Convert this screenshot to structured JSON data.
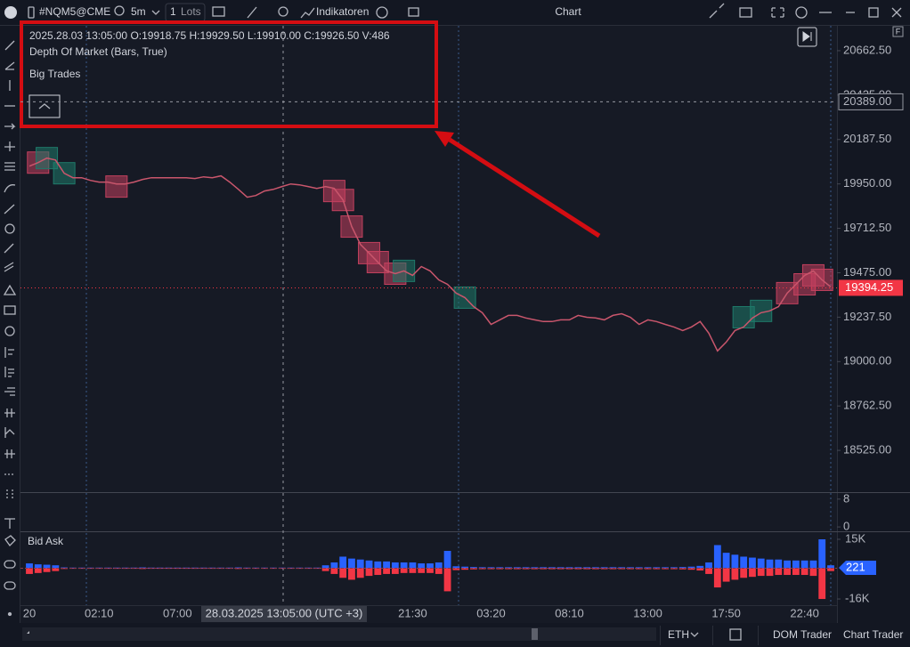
{
  "toolbar": {
    "symbol": "#NQM5@CME",
    "interval": "5m",
    "quantity": "1",
    "quantity_unit": "Lots",
    "indicators": "Indikatoren",
    "title": "Chart"
  },
  "legend": {
    "ohlc": "2025.28.03 13:05:00 O:19918.75 H:19929.50 L:19910.00 C:19926.50 V:486",
    "lines": [
      "Depth Of Market (Bars, True)",
      "Big Trades"
    ]
  },
  "badge": "F",
  "status_bar": {
    "session": "ETH",
    "buttons": [
      "DOM Trader",
      "Chart Trader"
    ]
  },
  "chart_data": {
    "type": "line",
    "color": "#c9566c",
    "categories": [
      "20",
      null,
      null,
      null,
      null,
      null,
      null,
      null,
      "02:10",
      null,
      null,
      null,
      null,
      null,
      null,
      null,
      null,
      "07:00",
      null,
      null,
      null,
      null,
      null,
      null,
      null,
      null,
      null,
      null,
      null,
      null,
      null,
      null,
      null,
      null,
      null,
      null,
      null,
      null,
      null,
      null,
      null,
      null,
      null,
      null,
      "21:30",
      null,
      null,
      null,
      null,
      null,
      null,
      null,
      null,
      "03:20",
      null,
      null,
      null,
      null,
      null,
      null,
      null,
      null,
      "08:10",
      null,
      null,
      null,
      null,
      null,
      null,
      null,
      null,
      "13:00",
      null,
      null,
      null,
      null,
      null,
      null,
      null,
      null,
      "17:50",
      null,
      null,
      null,
      null,
      null,
      null,
      null,
      null,
      "22:40",
      null,
      null,
      null
    ],
    "values": [
      20045,
      20064,
      20088,
      20078,
      20007,
      19983,
      19983,
      19969,
      19960,
      19960,
      19950,
      19950,
      19960,
      19974,
      19983,
      19983,
      19983,
      19983,
      19983,
      19979,
      19988,
      19983,
      19993,
      19960,
      19921,
      19879,
      19888,
      19912,
      19921,
      19936,
      19950,
      19945,
      19936,
      19926,
      19936,
      19926,
      19864,
      19722,
      19627,
      19580,
      19532,
      19485,
      19470,
      19485,
      19461,
      19508,
      19485,
      19437,
      19413,
      19366,
      19342,
      19294,
      19261,
      19199,
      19223,
      19247,
      19247,
      19233,
      19223,
      19214,
      19214,
      19223,
      19223,
      19247,
      19237,
      19233,
      19223,
      19247,
      19256,
      19237,
      19199,
      19223,
      19214,
      19199,
      19185,
      19166,
      19185,
      19214,
      19152,
      19057,
      19104,
      19166,
      19185,
      19233,
      19261,
      19271,
      19294,
      19366,
      19413,
      19461,
      19485,
      19437,
      19399
    ],
    "ylim": [
      18306.5,
      20790.75
    ],
    "yticks": [
      {
        "value": 20662.5,
        "label": "20662.50"
      },
      {
        "value": 20425,
        "label": "20425.00"
      },
      {
        "value": 20187.5,
        "label": "20187.50"
      },
      {
        "value": 19950,
        "label": "19950.00"
      },
      {
        "value": 19712.5,
        "label": "19712.50"
      },
      {
        "value": 19475,
        "label": "19475.00"
      },
      {
        "value": 19237.5,
        "label": "19237.50"
      },
      {
        "value": 19000,
        "label": "19000.00"
      },
      {
        "value": 18762.5,
        "label": "18762.50"
      },
      {
        "value": 18525,
        "label": "18525.00"
      }
    ],
    "crosshair": {
      "x_label": "28.03.2025 13:05:00 (UTC +3)",
      "price": {
        "value": 20389,
        "label": "20389.00"
      }
    },
    "last_price": {
      "value": 19394.25,
      "label": "19394.25",
      "color": "#f23645"
    },
    "big_trades": [
      {
        "index": 1,
        "price": 20064,
        "color": "#c2405e"
      },
      {
        "index": 2,
        "price": 20088,
        "color": "#1f7a6a"
      },
      {
        "index": 4,
        "price": 20007,
        "color": "#1f7a6a"
      },
      {
        "index": 10,
        "price": 19936,
        "color": "#c2405e"
      },
      {
        "index": 35,
        "price": 19912,
        "color": "#c2405e"
      },
      {
        "index": 36,
        "price": 19864,
        "color": "#c2405e"
      },
      {
        "index": 37,
        "price": 19722,
        "color": "#c2405e"
      },
      {
        "index": 39,
        "price": 19580,
        "color": "#c2405e"
      },
      {
        "index": 40,
        "price": 19532,
        "color": "#c2405e"
      },
      {
        "index": 42,
        "price": 19470,
        "color": "#c2405e"
      },
      {
        "index": 43,
        "price": 19485,
        "color": "#1f7a6a"
      },
      {
        "index": 50,
        "price": 19342,
        "color": "#1f7a6a"
      },
      {
        "index": 82,
        "price": 19237,
        "color": "#1f7a6a"
      },
      {
        "index": 84,
        "price": 19271,
        "color": "#1f7a6a"
      },
      {
        "index": 87,
        "price": 19366,
        "color": "#c2405e"
      },
      {
        "index": 89,
        "price": 19413,
        "color": "#c2405e"
      },
      {
        "index": 90,
        "price": 19461,
        "color": "#c2405e"
      },
      {
        "index": 91,
        "price": 19437,
        "color": "#c2405e"
      }
    ],
    "empty_panel": {
      "ylim": [
        -1.25,
        10
      ],
      "yticks": [
        8,
        0
      ]
    },
    "indicator": {
      "type": "bar",
      "title": "Bid Ask",
      "ylim": [
        -20600,
        18700
      ],
      "yticks": [
        {
          "value": 15000,
          "label": "15K"
        },
        {
          "value": -16000,
          "label": "-16K"
        }
      ],
      "last_value": {
        "value": 221,
        "color": "#2962ff"
      },
      "series": [
        {
          "color": "#2962ff",
          "values": [
            2500,
            2000,
            1800,
            1500,
            400,
            300,
            300,
            300,
            300,
            300,
            300,
            300,
            300,
            400,
            300,
            300,
            300,
            300,
            300,
            300,
            300,
            300,
            300,
            300,
            400,
            300,
            300,
            300,
            300,
            300,
            300,
            300,
            300,
            300,
            1500,
            3000,
            6000,
            5000,
            4500,
            4000,
            3500,
            3500,
            3000,
            3000,
            3000,
            2500,
            2500,
            3000,
            9000,
            1000,
            800,
            600,
            500,
            500,
            500,
            500,
            500,
            500,
            500,
            500,
            500,
            500,
            500,
            500,
            500,
            500,
            500,
            500,
            500,
            500,
            500,
            500,
            500,
            500,
            500,
            600,
            800,
            1200,
            3000,
            12000,
            8000,
            7000,
            6000,
            5500,
            5000,
            4500,
            4500,
            4000,
            4000,
            4000,
            4000,
            15000,
            1500
          ]
        },
        {
          "color": "#f23645",
          "values": [
            -3000,
            -2500,
            -2000,
            -1500,
            -400,
            -300,
            -300,
            -300,
            -300,
            -300,
            -300,
            -300,
            -300,
            -400,
            -300,
            -300,
            -300,
            -300,
            -300,
            -300,
            -300,
            -300,
            -300,
            -300,
            -400,
            -300,
            -300,
            -300,
            -300,
            -300,
            -300,
            -300,
            -300,
            -300,
            -1500,
            -3000,
            -5000,
            -6000,
            -5000,
            -4000,
            -3500,
            -3000,
            -3000,
            -2500,
            -2500,
            -2500,
            -2500,
            -3000,
            -12000,
            -1000,
            -800,
            -600,
            -500,
            -500,
            -500,
            -500,
            -500,
            -500,
            -500,
            -500,
            -500,
            -500,
            -500,
            -500,
            -500,
            -500,
            -500,
            -500,
            -500,
            -500,
            -500,
            -500,
            -500,
            -500,
            -500,
            -600,
            -800,
            -1200,
            -3000,
            -10000,
            -7000,
            -6000,
            -5000,
            -4500,
            -4000,
            -4000,
            -3500,
            -3500,
            -3500,
            -3500,
            -4000,
            -16000,
            -1500
          ]
        }
      ]
    }
  }
}
